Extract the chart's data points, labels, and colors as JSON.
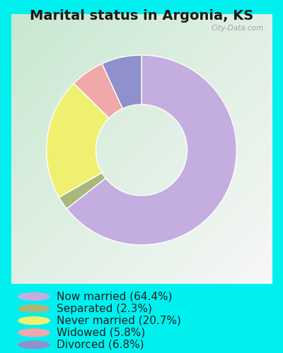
{
  "title": "Marital status in Argonia, KS",
  "background_outer": "#00f0f0",
  "background_inner_topleft": "#c8e8d0",
  "background_inner_center": "#e8f4ee",
  "watermark": "City-Data.com",
  "slices": [
    {
      "label": "Now married (64.4%)",
      "value": 64.4,
      "color": "#c4aee0"
    },
    {
      "label": "Separated (2.3%)",
      "value": 2.3,
      "color": "#a8b87a"
    },
    {
      "label": "Never married (20.7%)",
      "value": 20.7,
      "color": "#f0f070"
    },
    {
      "label": "Widowed (5.8%)",
      "value": 5.8,
      "color": "#f0a8a8"
    },
    {
      "label": "Divorced (6.8%)",
      "value": 6.8,
      "color": "#9090cc"
    }
  ],
  "startangle": 90,
  "title_fontsize": 14,
  "title_color": "#1a1a1a",
  "legend_fontsize": 11,
  "legend_text_color": "#222222"
}
